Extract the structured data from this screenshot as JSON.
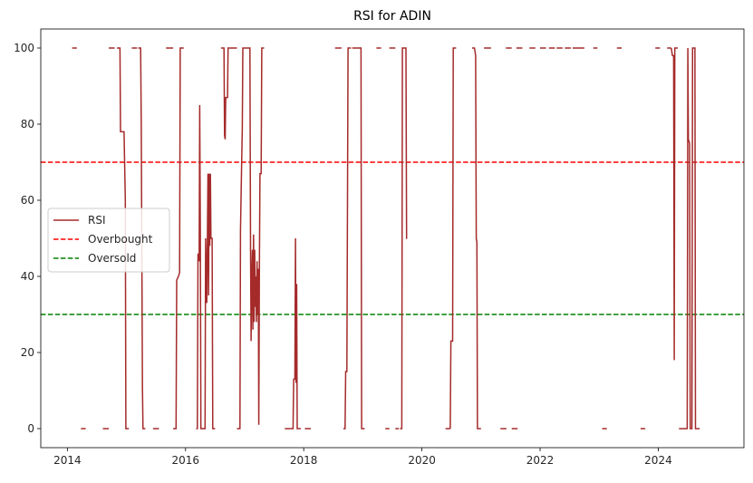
{
  "chart_data": {
    "type": "line",
    "title": "RSI for ADIN",
    "xlabel": "",
    "ylabel": "",
    "xlim": [
      2013.55,
      2025.45
    ],
    "ylim": [
      -5,
      105
    ],
    "x_ticks": [
      2014,
      2016,
      2018,
      2020,
      2022,
      2024
    ],
    "x_tick_labels": [
      "2014",
      "2016",
      "2018",
      "2020",
      "2022",
      "2024"
    ],
    "y_ticks": [
      0,
      20,
      40,
      60,
      80,
      100
    ],
    "y_tick_labels": [
      "0",
      "20",
      "40",
      "60",
      "80",
      "100"
    ],
    "grid": false,
    "legend": {
      "position": "center-left",
      "entries": [
        "RSI",
        "Overbought",
        "Oversold"
      ]
    },
    "series": [
      {
        "name": "RSI",
        "color": "#a52a2a",
        "style": "solid",
        "segments": [
          [
            [
              2014.08,
              100
            ],
            [
              2014.16,
              100
            ]
          ],
          [
            [
              2014.23,
              0
            ],
            [
              2014.31,
              0
            ]
          ],
          [
            [
              2014.6,
              0
            ],
            [
              2014.7,
              0
            ]
          ],
          [
            [
              2014.7,
              100
            ],
            [
              2014.8,
              100
            ]
          ],
          [
            [
              2014.84,
              100
            ],
            [
              2014.89,
              100
            ],
            [
              2014.9,
              78
            ],
            [
              2014.96,
              78
            ],
            [
              2014.98,
              60
            ],
            [
              2014.99,
              0
            ],
            [
              2015.04,
              0
            ]
          ],
          [
            [
              2015.09,
              100
            ],
            [
              2015.18,
              100
            ]
          ],
          [
            [
              2015.2,
              100
            ],
            [
              2015.24,
              100
            ],
            [
              2015.25,
              80
            ],
            [
              2015.27,
              11
            ],
            [
              2015.28,
              0
            ],
            [
              2015.32,
              0
            ]
          ],
          [
            [
              2015.45,
              0
            ],
            [
              2015.55,
              0
            ]
          ],
          [
            [
              2015.67,
              100
            ],
            [
              2015.79,
              100
            ]
          ],
          [
            [
              2015.79,
              0
            ],
            [
              2015.84,
              0
            ],
            [
              2015.85,
              39
            ],
            [
              2015.88,
              40
            ],
            [
              2015.9,
              41
            ],
            [
              2015.91,
              100
            ],
            [
              2015.97,
              100
            ]
          ],
          [
            [
              2016.18,
              0
            ],
            [
              2016.2,
              0
            ],
            [
              2016.21,
              46
            ],
            [
              2016.23,
              44
            ],
            [
              2016.24,
              85
            ],
            [
              2016.25,
              51
            ],
            [
              2016.26,
              0
            ],
            [
              2016.33,
              0
            ],
            [
              2016.34,
              50
            ],
            [
              2016.36,
              33
            ],
            [
              2016.37,
              50
            ],
            [
              2016.38,
              67
            ],
            [
              2016.39,
              35
            ],
            [
              2016.4,
              67
            ],
            [
              2016.41,
              48
            ],
            [
              2016.42,
              67
            ],
            [
              2016.43,
              50
            ],
            [
              2016.45,
              50
            ],
            [
              2016.46,
              0
            ],
            [
              2016.5,
              0
            ]
          ],
          [
            [
              2016.6,
              100
            ],
            [
              2016.65,
              100
            ],
            [
              2016.66,
              77
            ],
            [
              2016.67,
              76
            ],
            [
              2016.68,
              87
            ],
            [
              2016.71,
              87
            ],
            [
              2016.72,
              100
            ],
            [
              2016.87,
              100
            ]
          ],
          [
            [
              2016.87,
              0
            ],
            [
              2016.92,
              0
            ],
            [
              2016.93,
              52
            ],
            [
              2016.95,
              70
            ],
            [
              2016.96,
              79
            ],
            [
              2016.97,
              100
            ],
            [
              2017.09,
              100
            ],
            [
              2017.1,
              47
            ],
            [
              2017.11,
              23
            ],
            [
              2017.12,
              40
            ],
            [
              2017.13,
              47
            ],
            [
              2017.14,
              26
            ],
            [
              2017.15,
              51
            ],
            [
              2017.16,
              28
            ],
            [
              2017.17,
              47
            ],
            [
              2017.18,
              32
            ],
            [
              2017.19,
              40
            ],
            [
              2017.2,
              28
            ],
            [
              2017.21,
              44
            ],
            [
              2017.22,
              30
            ],
            [
              2017.23,
              42
            ],
            [
              2017.24,
              1
            ],
            [
              2017.25,
              44
            ],
            [
              2017.26,
              67
            ],
            [
              2017.28,
              67
            ],
            [
              2017.29,
              100
            ],
            [
              2017.33,
              100
            ]
          ],
          [
            [
              2017.68,
              0
            ],
            [
              2017.78,
              0
            ]
          ],
          [
            [
              2017.78,
              0
            ],
            [
              2017.82,
              0
            ],
            [
              2017.83,
              13
            ],
            [
              2017.85,
              13
            ],
            [
              2017.86,
              50
            ],
            [
              2017.87,
              12
            ],
            [
              2017.88,
              38
            ],
            [
              2017.89,
              0
            ],
            [
              2017.95,
              0
            ]
          ],
          [
            [
              2018.02,
              0
            ],
            [
              2018.12,
              0
            ]
          ],
          [
            [
              2018.53,
              100
            ],
            [
              2018.64,
              100
            ]
          ],
          [
            [
              2018.67,
              0
            ],
            [
              2018.7,
              0
            ],
            [
              2018.71,
              15
            ],
            [
              2018.73,
              15
            ],
            [
              2018.75,
              100
            ],
            [
              2018.8,
              100
            ]
          ],
          [
            [
              2018.82,
              100
            ],
            [
              2018.97,
              100
            ],
            [
              2018.98,
              0
            ],
            [
              2019.03,
              0
            ]
          ],
          [
            [
              2019.23,
              100
            ],
            [
              2019.31,
              100
            ]
          ],
          [
            [
              2019.38,
              0
            ],
            [
              2019.45,
              0
            ]
          ],
          [
            [
              2019.45,
              100
            ],
            [
              2019.55,
              100
            ]
          ],
          [
            [
              2019.55,
              0
            ],
            [
              2019.61,
              0
            ]
          ],
          [
            [
              2019.63,
              0
            ],
            [
              2019.66,
              0
            ],
            [
              2019.67,
              100
            ],
            [
              2019.73,
              100
            ],
            [
              2019.74,
              50
            ],
            [
              2019.75,
              50
            ]
          ],
          [
            [
              2020.4,
              0
            ],
            [
              2020.48,
              0
            ]
          ],
          [
            [
              2020.48,
              0
            ],
            [
              2020.49,
              23
            ],
            [
              2020.52,
              23
            ],
            [
              2020.53,
              100
            ],
            [
              2020.58,
              100
            ]
          ],
          [
            [
              2020.85,
              100
            ],
            [
              2020.89,
              100
            ],
            [
              2020.9,
              99
            ],
            [
              2020.91,
              98
            ],
            [
              2020.92,
              50
            ],
            [
              2020.93,
              49
            ],
            [
              2020.94,
              0
            ],
            [
              2021.0,
              0
            ]
          ],
          [
            [
              2021.05,
              100
            ],
            [
              2021.17,
              100
            ]
          ],
          [
            [
              2021.33,
              0
            ],
            [
              2021.43,
              0
            ]
          ],
          [
            [
              2021.52,
              0
            ],
            [
              2021.62,
              0
            ]
          ],
          [
            [
              2021.42,
              100
            ],
            [
              2021.52,
              100
            ]
          ],
          [
            [
              2021.6,
              100
            ],
            [
              2021.7,
              100
            ]
          ],
          [
            [
              2021.82,
              100
            ],
            [
              2021.92,
              100
            ]
          ],
          [
            [
              2022.0,
              100
            ],
            [
              2022.1,
              100
            ]
          ],
          [
            [
              2022.15,
              100
            ],
            [
              2022.25,
              100
            ]
          ],
          [
            [
              2022.28,
              100
            ],
            [
              2022.38,
              100
            ]
          ],
          [
            [
              2022.42,
              100
            ],
            [
              2022.52,
              100
            ]
          ],
          [
            [
              2022.55,
              100
            ],
            [
              2022.62,
              100
            ]
          ],
          [
            [
              2022.62,
              100
            ],
            [
              2022.68,
              100
            ]
          ],
          [
            [
              2022.68,
              100
            ],
            [
              2022.75,
              100
            ]
          ],
          [
            [
              2022.9,
              100
            ],
            [
              2022.97,
              100
            ]
          ],
          [
            [
              2023.05,
              0
            ],
            [
              2023.13,
              0
            ]
          ],
          [
            [
              2023.3,
              100
            ],
            [
              2023.38,
              100
            ]
          ],
          [
            [
              2023.7,
              0
            ],
            [
              2023.78,
              0
            ]
          ],
          [
            [
              2023.95,
              100
            ],
            [
              2024.03,
              100
            ]
          ],
          [
            [
              2024.15,
              100
            ],
            [
              2024.22,
              100
            ]
          ],
          [
            [
              2024.22,
              100
            ],
            [
              2024.24,
              98
            ],
            [
              2024.26,
              98
            ],
            [
              2024.27,
              18
            ],
            [
              2024.28,
              100
            ],
            [
              2024.33,
              100
            ]
          ],
          [
            [
              2024.35,
              0
            ],
            [
              2024.43,
              0
            ]
          ],
          [
            [
              2024.43,
              0
            ],
            [
              2024.49,
              0
            ],
            [
              2024.5,
              100
            ],
            [
              2024.51,
              76
            ],
            [
              2024.53,
              75
            ],
            [
              2024.54,
              0
            ],
            [
              2024.57,
              0
            ],
            [
              2024.58,
              100
            ],
            [
              2024.62,
              100
            ],
            [
              2024.63,
              0
            ],
            [
              2024.7,
              0
            ]
          ]
        ]
      },
      {
        "name": "Overbought",
        "color": "#ff0000",
        "style": "dashed",
        "value": 70
      },
      {
        "name": "Oversold",
        "color": "#008000",
        "style": "dashed",
        "value": 30
      }
    ]
  }
}
